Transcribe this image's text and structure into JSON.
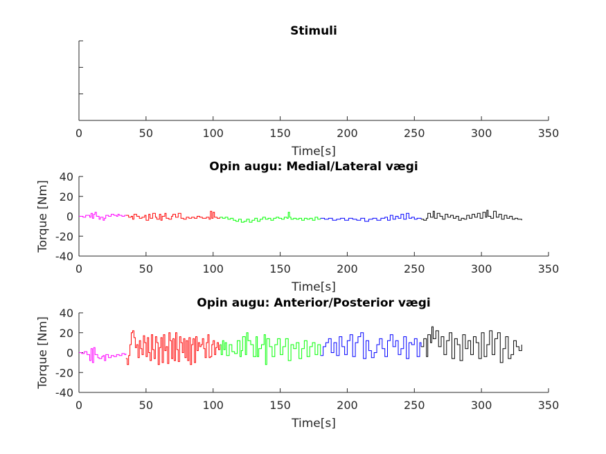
{
  "chart_data": [
    {
      "type": "line",
      "title": "Stimuli",
      "xlabel": "Time[s]",
      "ylabel": "",
      "xlim": [
        0,
        350
      ],
      "x_ticks": [
        0,
        50,
        100,
        150,
        200,
        250,
        300,
        350
      ],
      "y_tick_count": 4,
      "y_ticks_labeled": false,
      "grid": false,
      "series": []
    },
    {
      "type": "line",
      "title": "Opin augu: Medial/Lateral vægi",
      "xlabel": "Time[s]",
      "ylabel": "Torque [Nm]",
      "xlim": [
        0,
        350
      ],
      "ylim": [
        -40,
        40
      ],
      "x_ticks": [
        0,
        50,
        100,
        150,
        200,
        250,
        300,
        350
      ],
      "y_ticks": [
        -40,
        -20,
        0,
        20,
        40
      ],
      "grid": false,
      "series": [
        {
          "color": "#ff00ff",
          "x": [
            0,
            3,
            5,
            8,
            9,
            10,
            11,
            12,
            13,
            15,
            16,
            18,
            19,
            20,
            22,
            24,
            26,
            28,
            29,
            30,
            32,
            34,
            35
          ],
          "y": [
            0,
            -1,
            1,
            -1,
            3,
            -2,
            2,
            4,
            0,
            -3,
            -1,
            -4,
            -2,
            1,
            0,
            2,
            1,
            0,
            2,
            1,
            0,
            1,
            1
          ]
        },
        {
          "color": "#ff0000",
          "x": [
            35,
            37,
            39,
            40,
            41,
            43,
            45,
            47,
            49,
            50,
            52,
            53,
            55,
            57,
            58,
            60,
            61,
            62,
            64,
            65,
            67,
            69,
            70,
            72,
            74,
            76,
            78,
            80,
            82,
            84,
            86,
            88,
            90,
            92,
            95,
            97,
            98,
            99,
            100,
            101,
            103,
            105
          ],
          "y": [
            1,
            -1,
            0,
            -3,
            2,
            0,
            -2,
            -1,
            1,
            -4,
            2,
            -2,
            3,
            -1,
            -3,
            2,
            -4,
            0,
            3,
            -2,
            -3,
            0,
            2,
            -1,
            3,
            -2,
            -3,
            -1,
            -2,
            -1,
            -2,
            0,
            -1,
            -2,
            -1,
            -3,
            5,
            -2,
            4,
            -1,
            -2,
            -1
          ]
        },
        {
          "color": "#00ff00",
          "x": [
            105,
            107,
            109,
            111,
            113,
            115,
            117,
            119,
            121,
            123,
            125,
            127,
            129,
            131,
            133,
            135,
            137,
            139,
            141,
            143,
            145,
            147,
            149,
            151,
            153,
            155,
            156,
            157,
            158,
            160,
            162,
            164,
            166,
            168,
            170,
            172,
            174,
            176,
            178,
            180
          ],
          "y": [
            -1,
            -2,
            -1,
            -3,
            -2,
            -4,
            -5,
            -3,
            -6,
            -5,
            -3,
            -6,
            -4,
            -2,
            -5,
            -3,
            -1,
            -3,
            -2,
            -4,
            -2,
            -1,
            -2,
            -3,
            -1,
            -2,
            4,
            -1,
            -3,
            -2,
            -3,
            -2,
            -4,
            -2,
            -3,
            -2,
            -4,
            -1,
            -3,
            -2
          ]
        },
        {
          "color": "#0000ff",
          "x": [
            180,
            183,
            186,
            189,
            192,
            195,
            198,
            201,
            204,
            207,
            210,
            213,
            216,
            219,
            222,
            225,
            228,
            230,
            232,
            234,
            236,
            238,
            240,
            242,
            244,
            246,
            248,
            250,
            252,
            255
          ],
          "y": [
            -2,
            -3,
            -2,
            -4,
            -3,
            -2,
            -4,
            -2,
            -3,
            -4,
            -2,
            -5,
            -3,
            -2,
            -4,
            -2,
            -1,
            -4,
            1,
            -3,
            0,
            -2,
            2,
            -3,
            3,
            -2,
            -1,
            -3,
            -2,
            -3
          ]
        },
        {
          "color": "#000000",
          "x": [
            255,
            257,
            259,
            260,
            262,
            264,
            265,
            267,
            269,
            271,
            273,
            275,
            277,
            279,
            281,
            283,
            285,
            287,
            289,
            291,
            293,
            295,
            297,
            299,
            301,
            303,
            304,
            305,
            307,
            309,
            311,
            313,
            315,
            317,
            319,
            321,
            323,
            325,
            327,
            330
          ],
          "y": [
            -3,
            -4,
            -2,
            3,
            -1,
            5,
            -2,
            3,
            0,
            -3,
            2,
            -1,
            1,
            -2,
            0,
            -4,
            -2,
            -3,
            1,
            -2,
            2,
            -1,
            3,
            -2,
            4,
            -1,
            6,
            0,
            -2,
            5,
            -1,
            2,
            -3,
            1,
            -2,
            0,
            -3,
            -2,
            -3,
            -4
          ]
        }
      ]
    },
    {
      "type": "line",
      "title": "Opin augu: Anterior/Posterior vægi",
      "xlabel": "Time[s]",
      "ylabel": "Torque [Nm]",
      "xlim": [
        0,
        350
      ],
      "ylim": [
        -40,
        40
      ],
      "x_ticks": [
        0,
        50,
        100,
        150,
        200,
        250,
        300,
        350
      ],
      "y_ticks": [
        -40,
        -20,
        0,
        20,
        40
      ],
      "grid": false,
      "series": [
        {
          "color": "#ff00ff",
          "x": [
            0,
            2,
            4,
            6,
            8,
            9,
            10,
            11,
            12,
            14,
            15,
            17,
            18,
            19,
            20,
            22,
            24,
            26,
            28,
            30,
            32,
            34,
            35
          ],
          "y": [
            0,
            -1,
            1,
            -2,
            -8,
            4,
            -10,
            5,
            -2,
            -5,
            -6,
            -4,
            -3,
            -8,
            -2,
            -5,
            -3,
            -4,
            -2,
            -3,
            -1,
            -2,
            -1
          ]
        },
        {
          "color": "#ff0000",
          "x": [
            35,
            36,
            37,
            38,
            39,
            40,
            41,
            42,
            43,
            44,
            45,
            46,
            47,
            48,
            49,
            50,
            51,
            52,
            53,
            54,
            55,
            56,
            57,
            58,
            59,
            60,
            61,
            62,
            63,
            64,
            65,
            66,
            67,
            68,
            69,
            70,
            71,
            72,
            73,
            74,
            75,
            76,
            77,
            78,
            79,
            80,
            81,
            82,
            83,
            84,
            85,
            86,
            87,
            88,
            89,
            90,
            91,
            92,
            93,
            94,
            95,
            96,
            97,
            98,
            99,
            100,
            101,
            102,
            103,
            104,
            105
          ],
          "y": [
            -6,
            -12,
            -3,
            8,
            20,
            22,
            15,
            5,
            8,
            -5,
            12,
            4,
            -2,
            17,
            10,
            -4,
            15,
            0,
            -8,
            18,
            3,
            -6,
            16,
            10,
            -12,
            5,
            15,
            -10,
            18,
            2,
            6,
            -11,
            20,
            12,
            -6,
            14,
            -8,
            20,
            3,
            -9,
            16,
            10,
            0,
            14,
            -5,
            12,
            -8,
            15,
            -12,
            8,
            14,
            -10,
            16,
            2,
            10,
            6,
            8,
            14,
            4,
            -5,
            10,
            18,
            -5,
            -4,
            8,
            12,
            -2,
            5,
            10,
            3,
            8
          ]
        },
        {
          "color": "#00ff00",
          "x": [
            105,
            106,
            107,
            108,
            109,
            110,
            112,
            114,
            116,
            118,
            120,
            121,
            122,
            124,
            125,
            126,
            128,
            130,
            132,
            133,
            134,
            136,
            138,
            139,
            140,
            142,
            144,
            146,
            148,
            150,
            152,
            154,
            156,
            158,
            160,
            162,
            164,
            166,
            168,
            170,
            172,
            174,
            176,
            178,
            180
          ],
          "y": [
            8,
            -2,
            12,
            3,
            10,
            -3,
            8,
            1,
            -1,
            12,
            -4,
            2,
            16,
            -2,
            20,
            12,
            8,
            -4,
            16,
            -4,
            4,
            8,
            18,
            -12,
            14,
            6,
            -4,
            8,
            14,
            -2,
            6,
            14,
            -8,
            8,
            4,
            10,
            -6,
            4,
            12,
            -4,
            6,
            10,
            -2,
            8,
            -3
          ]
        },
        {
          "color": "#0000ff",
          "x": [
            180,
            182,
            184,
            186,
            188,
            190,
            192,
            194,
            196,
            198,
            200,
            202,
            204,
            206,
            208,
            210,
            212,
            214,
            216,
            218,
            220,
            222,
            224,
            226,
            228,
            230,
            232,
            234,
            236,
            238,
            240,
            242,
            244,
            246,
            248,
            250,
            252,
            254,
            255
          ],
          "y": [
            -3,
            6,
            10,
            14,
            0,
            10,
            -3,
            16,
            6,
            -2,
            12,
            18,
            -4,
            10,
            16,
            20,
            -6,
            12,
            2,
            -5,
            0,
            8,
            14,
            4,
            -4,
            12,
            18,
            6,
            12,
            -2,
            4,
            16,
            -6,
            10,
            8,
            14,
            -4,
            10,
            6
          ]
        },
        {
          "color": "#000000",
          "x": [
            255,
            257,
            259,
            260,
            262,
            263,
            264,
            266,
            268,
            270,
            272,
            274,
            276,
            278,
            280,
            282,
            284,
            286,
            288,
            290,
            292,
            294,
            296,
            298,
            300,
            302,
            304,
            306,
            308,
            310,
            312,
            314,
            316,
            318,
            320,
            322,
            324,
            326,
            328,
            330
          ],
          "y": [
            6,
            14,
            -4,
            18,
            10,
            26,
            14,
            22,
            6,
            16,
            -2,
            12,
            20,
            -6,
            14,
            8,
            -8,
            18,
            4,
            12,
            -2,
            16,
            10,
            -6,
            20,
            -4,
            8,
            22,
            -2,
            14,
            20,
            -10,
            4,
            16,
            -6,
            -2,
            12,
            6,
            2,
            8
          ]
        }
      ]
    }
  ]
}
